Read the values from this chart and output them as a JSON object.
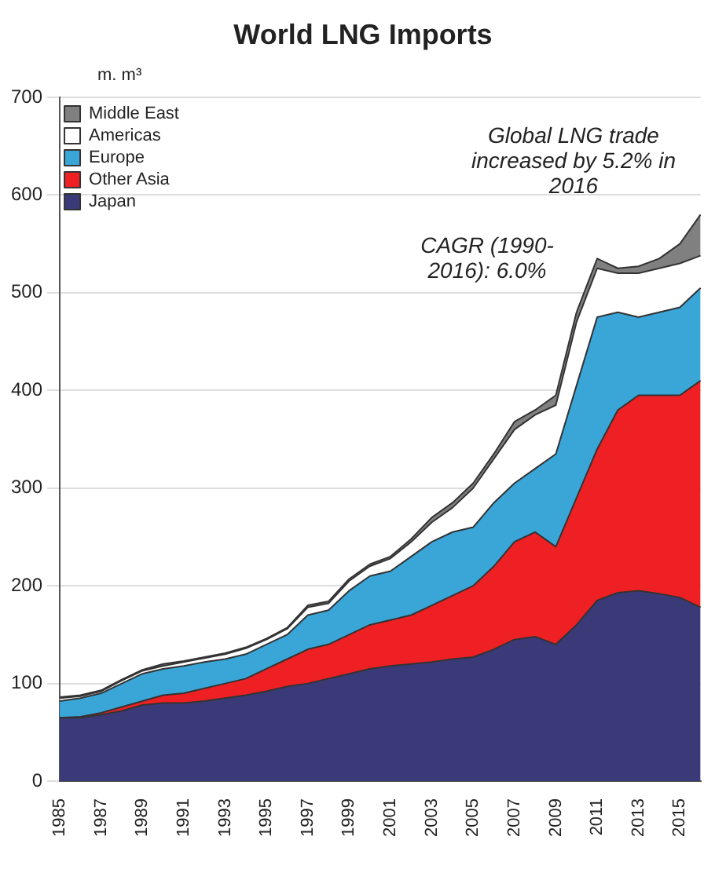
{
  "chart_data": {
    "type": "area",
    "title": "World LNG Imports",
    "ylabel": "m. m³",
    "categories": [
      "1985",
      null,
      "1987",
      null,
      "1989",
      null,
      "1991",
      null,
      "1993",
      null,
      "1995",
      null,
      "1997",
      null,
      "1999",
      null,
      "2001",
      null,
      "2003",
      null,
      "2005",
      null,
      "2007",
      null,
      "2009",
      null,
      "2011",
      null,
      "2013",
      null,
      "2015",
      null
    ],
    "stacked": true,
    "series": [
      {
        "name": "Japan",
        "color": "#3b3a78",
        "values": [
          65,
          65,
          68,
          72,
          78,
          80,
          80,
          82,
          85,
          88,
          92,
          97,
          100,
          105,
          110,
          115,
          118,
          120,
          122,
          125,
          127,
          135,
          145,
          148,
          140,
          160,
          185,
          193,
          195,
          192,
          188,
          178
        ]
      },
      {
        "name": "Other Asia",
        "color": "#ee2024",
        "values": [
          0,
          1,
          2,
          4,
          4,
          8,
          10,
          13,
          15,
          17,
          23,
          28,
          35,
          35,
          40,
          45,
          47,
          50,
          58,
          65,
          73,
          85,
          100,
          107,
          100,
          130,
          155,
          187,
          200,
          203,
          207,
          232
        ]
      },
      {
        "name": "Europe",
        "color": "#3aa6d8",
        "values": [
          17,
          19,
          20,
          24,
          28,
          27,
          28,
          27,
          25,
          25,
          25,
          25,
          35,
          35,
          45,
          50,
          50,
          60,
          65,
          65,
          60,
          65,
          60,
          65,
          95,
          115,
          135,
          100,
          80,
          85,
          90,
          95
        ]
      },
      {
        "name": "Americas",
        "color": "#ffffff",
        "values": [
          3,
          2,
          2,
          3,
          3,
          3,
          4,
          4,
          5,
          6,
          5,
          6,
          8,
          7,
          10,
          10,
          13,
          15,
          20,
          25,
          40,
          45,
          55,
          55,
          50,
          65,
          50,
          40,
          45,
          45,
          45,
          33
        ]
      },
      {
        "name": "Middle East",
        "color": "#808080",
        "values": [
          1,
          1,
          1,
          1,
          1,
          2,
          1,
          1,
          1,
          1,
          1,
          1,
          2,
          2,
          2,
          2,
          2,
          3,
          5,
          5,
          5,
          5,
          8,
          5,
          10,
          10,
          10,
          5,
          7,
          10,
          20,
          42
        ]
      }
    ],
    "ylim": [
      0,
      700
    ],
    "yticks": [
      0,
      100,
      200,
      300,
      400,
      500,
      600,
      700
    ],
    "grid": "y",
    "legend": "top left",
    "annotations": [
      "Global LNG trade increased by 5.2% in 2016",
      "CAGR (1990-2016): 6.0%"
    ]
  }
}
